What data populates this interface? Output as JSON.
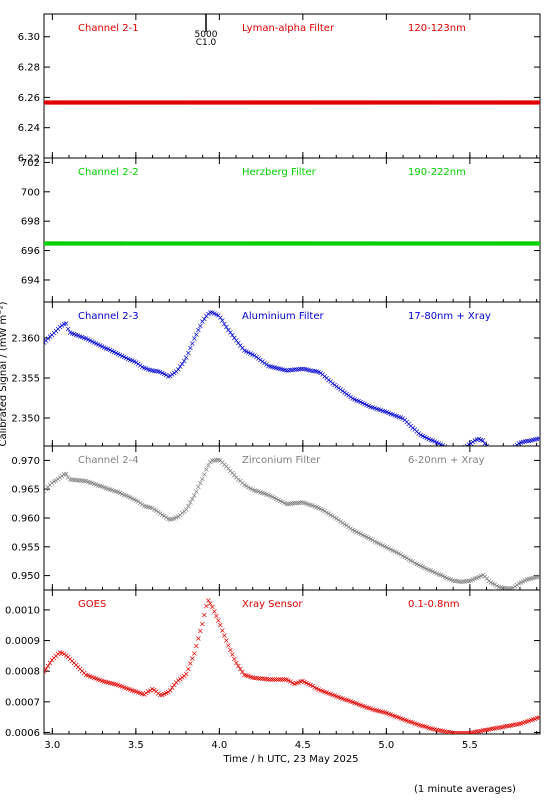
{
  "chart_data": {
    "type": "scatter",
    "xlabel": "Time / h UTC, 23 May 2025",
    "ylabel": "Calibrated Signal / (mW m⁻²)",
    "footnote": "(1 minute averages)",
    "xlim": [
      2.95,
      5.92
    ],
    "xticks": [
      "3.0",
      "3.5",
      "4.0",
      "4.5",
      "5.0",
      "5.5"
    ],
    "marker": "×",
    "annotation": {
      "x": 3.92,
      "lines": [
        "5000",
        "C1.0"
      ]
    },
    "panels": [
      {
        "channel": "Channel 2-1",
        "filter": "Lyman-alpha Filter",
        "band": "120-123nm",
        "color": "#e00000",
        "ylim": [
          6.22,
          6.315
        ],
        "yticks": [
          "6.30",
          "6.28",
          "6.26",
          "6.24",
          "6.22"
        ],
        "ytick_values": [
          6.3,
          6.28,
          6.26,
          6.24,
          6.22
        ],
        "series": [
          {
            "x": [
              2.95,
              5.92
            ],
            "y": [
              6.257,
              6.257
            ]
          }
        ]
      },
      {
        "channel": "Channel 2-2",
        "filter": "Herzberg Filter",
        "band": "190-222nm",
        "color": "#00d000",
        "ylim": [
          692.5,
          702.3
        ],
        "yticks": [
          "702",
          "700",
          "698",
          "696",
          "694"
        ],
        "ytick_values": [
          702,
          700,
          698,
          696,
          694
        ],
        "series": [
          {
            "x": [
              2.95,
              5.92
            ],
            "y": [
              696.5,
              696.5
            ]
          }
        ]
      },
      {
        "channel": "Channel 2-3",
        "filter": "Aluminium Filter",
        "band": "17-80nm + Xray",
        "color": "#0000d0",
        "ylim": [
          2.3465,
          2.3645
        ],
        "yticks": [
          "2.360",
          "2.355",
          "2.350"
        ],
        "ytick_values": [
          2.36,
          2.355,
          2.35
        ],
        "series": [
          {
            "x": [
              2.95,
              3.0,
              3.05,
              3.08,
              3.1,
              3.2,
              3.3,
              3.4,
              3.5,
              3.55,
              3.6,
              3.65,
              3.7,
              3.75,
              3.8,
              3.85,
              3.9,
              3.93,
              3.95,
              4.0,
              4.05,
              4.1,
              4.15,
              4.2,
              4.3,
              4.4,
              4.5,
              4.6,
              4.7,
              4.8,
              4.9,
              5.0,
              5.1,
              5.2,
              5.3,
              5.4,
              5.45,
              5.5,
              5.55,
              5.58,
              5.62,
              5.68,
              5.75,
              5.8,
              5.85,
              5.92
            ],
            "y": [
              2.3595,
              2.3605,
              2.3615,
              2.362,
              2.3608,
              2.36,
              2.359,
              2.358,
              2.357,
              2.3563,
              2.356,
              2.3558,
              2.3552,
              2.356,
              2.3575,
              2.36,
              2.3622,
              2.363,
              2.3633,
              2.3628,
              2.3612,
              2.3598,
              2.3585,
              2.358,
              2.3565,
              2.356,
              2.3562,
              2.3558,
              2.354,
              2.3525,
              2.3515,
              2.3508,
              2.35,
              2.348,
              2.347,
              2.346,
              2.3462,
              2.3468,
              2.3475,
              2.3472,
              2.346,
              2.3455,
              2.3462,
              2.347,
              2.3472,
              2.3475
            ]
          }
        ]
      },
      {
        "channel": "Channel 2-4",
        "filter": "Zirconium Filter",
        "band": "6-20nm + Xray",
        "color": "#808080",
        "ylim": [
          0.9475,
          0.9725
        ],
        "yticks": [
          "0.970",
          "0.965",
          "0.960",
          "0.955",
          "0.950"
        ],
        "ytick_values": [
          0.97,
          0.965,
          0.96,
          0.955,
          0.95
        ],
        "series": [
          {
            "x": [
              2.95,
              3.0,
              3.05,
              3.08,
              3.1,
              3.2,
              3.3,
              3.4,
              3.5,
              3.55,
              3.6,
              3.65,
              3.7,
              3.75,
              3.8,
              3.85,
              3.9,
              3.93,
              3.95,
              4.0,
              4.05,
              4.1,
              4.15,
              4.2,
              4.3,
              4.4,
              4.5,
              4.6,
              4.7,
              4.8,
              4.9,
              5.0,
              5.1,
              5.2,
              5.3,
              5.4,
              5.45,
              5.5,
              5.55,
              5.58,
              5.62,
              5.68,
              5.75,
              5.8,
              5.85,
              5.92
            ],
            "y": [
              0.9648,
              0.9662,
              0.9672,
              0.9678,
              0.9668,
              0.9665,
              0.9655,
              0.9645,
              0.9632,
              0.9622,
              0.9618,
              0.9608,
              0.9598,
              0.9602,
              0.9615,
              0.964,
              0.967,
              0.969,
              0.97,
              0.9702,
              0.9688,
              0.9672,
              0.9658,
              0.965,
              0.964,
              0.9625,
              0.9628,
              0.9618,
              0.96,
              0.958,
              0.9565,
              0.955,
              0.9535,
              0.9518,
              0.9505,
              0.9492,
              0.949,
              0.9492,
              0.9498,
              0.9502,
              0.949,
              0.948,
              0.9478,
              0.9488,
              0.9495,
              0.95
            ]
          }
        ]
      },
      {
        "channel": "GOES",
        "filter": "Xray Sensor",
        "band": "0.1-0.8nm",
        "color": "#e00000",
        "ylim": [
          0.000595,
          0.001065
        ],
        "yticks": [
          "0.0010",
          "0.0009",
          "0.0008",
          "0.0007",
          "0.0006"
        ],
        "ytick_values": [
          0.001,
          0.0009,
          0.0008,
          0.0007,
          0.0006
        ],
        "series": [
          {
            "x": [
              2.95,
              3.0,
              3.05,
              3.1,
              3.2,
              3.3,
              3.4,
              3.5,
              3.55,
              3.6,
              3.65,
              3.7,
              3.75,
              3.8,
              3.85,
              3.9,
              3.93,
              3.95,
              4.0,
              4.05,
              4.1,
              4.15,
              4.2,
              4.3,
              4.4,
              4.45,
              4.5,
              4.6,
              4.7,
              4.8,
              4.9,
              5.0,
              5.1,
              5.2,
              5.3,
              5.4,
              5.5,
              5.6,
              5.7,
              5.8,
              5.9,
              5.92
            ],
            "y": [
              0.0008,
              0.00084,
              0.000865,
              0.000845,
              0.00079,
              0.00077,
              0.000755,
              0.000735,
              0.000725,
              0.000745,
              0.000722,
              0.000735,
              0.00077,
              0.00079,
              0.00086,
              0.00096,
              0.001035,
              0.00102,
              0.00096,
              0.00089,
              0.00083,
              0.00079,
              0.00078,
              0.000775,
              0.000775,
              0.00076,
              0.00077,
              0.00074,
              0.00072,
              0.0007,
              0.00068,
              0.000665,
              0.000645,
              0.000625,
              0.00061,
              0.0006,
              0.0006,
              0.00061,
              0.00062,
              0.00063,
              0.000648,
              0.000652
            ]
          }
        ]
      }
    ]
  }
}
